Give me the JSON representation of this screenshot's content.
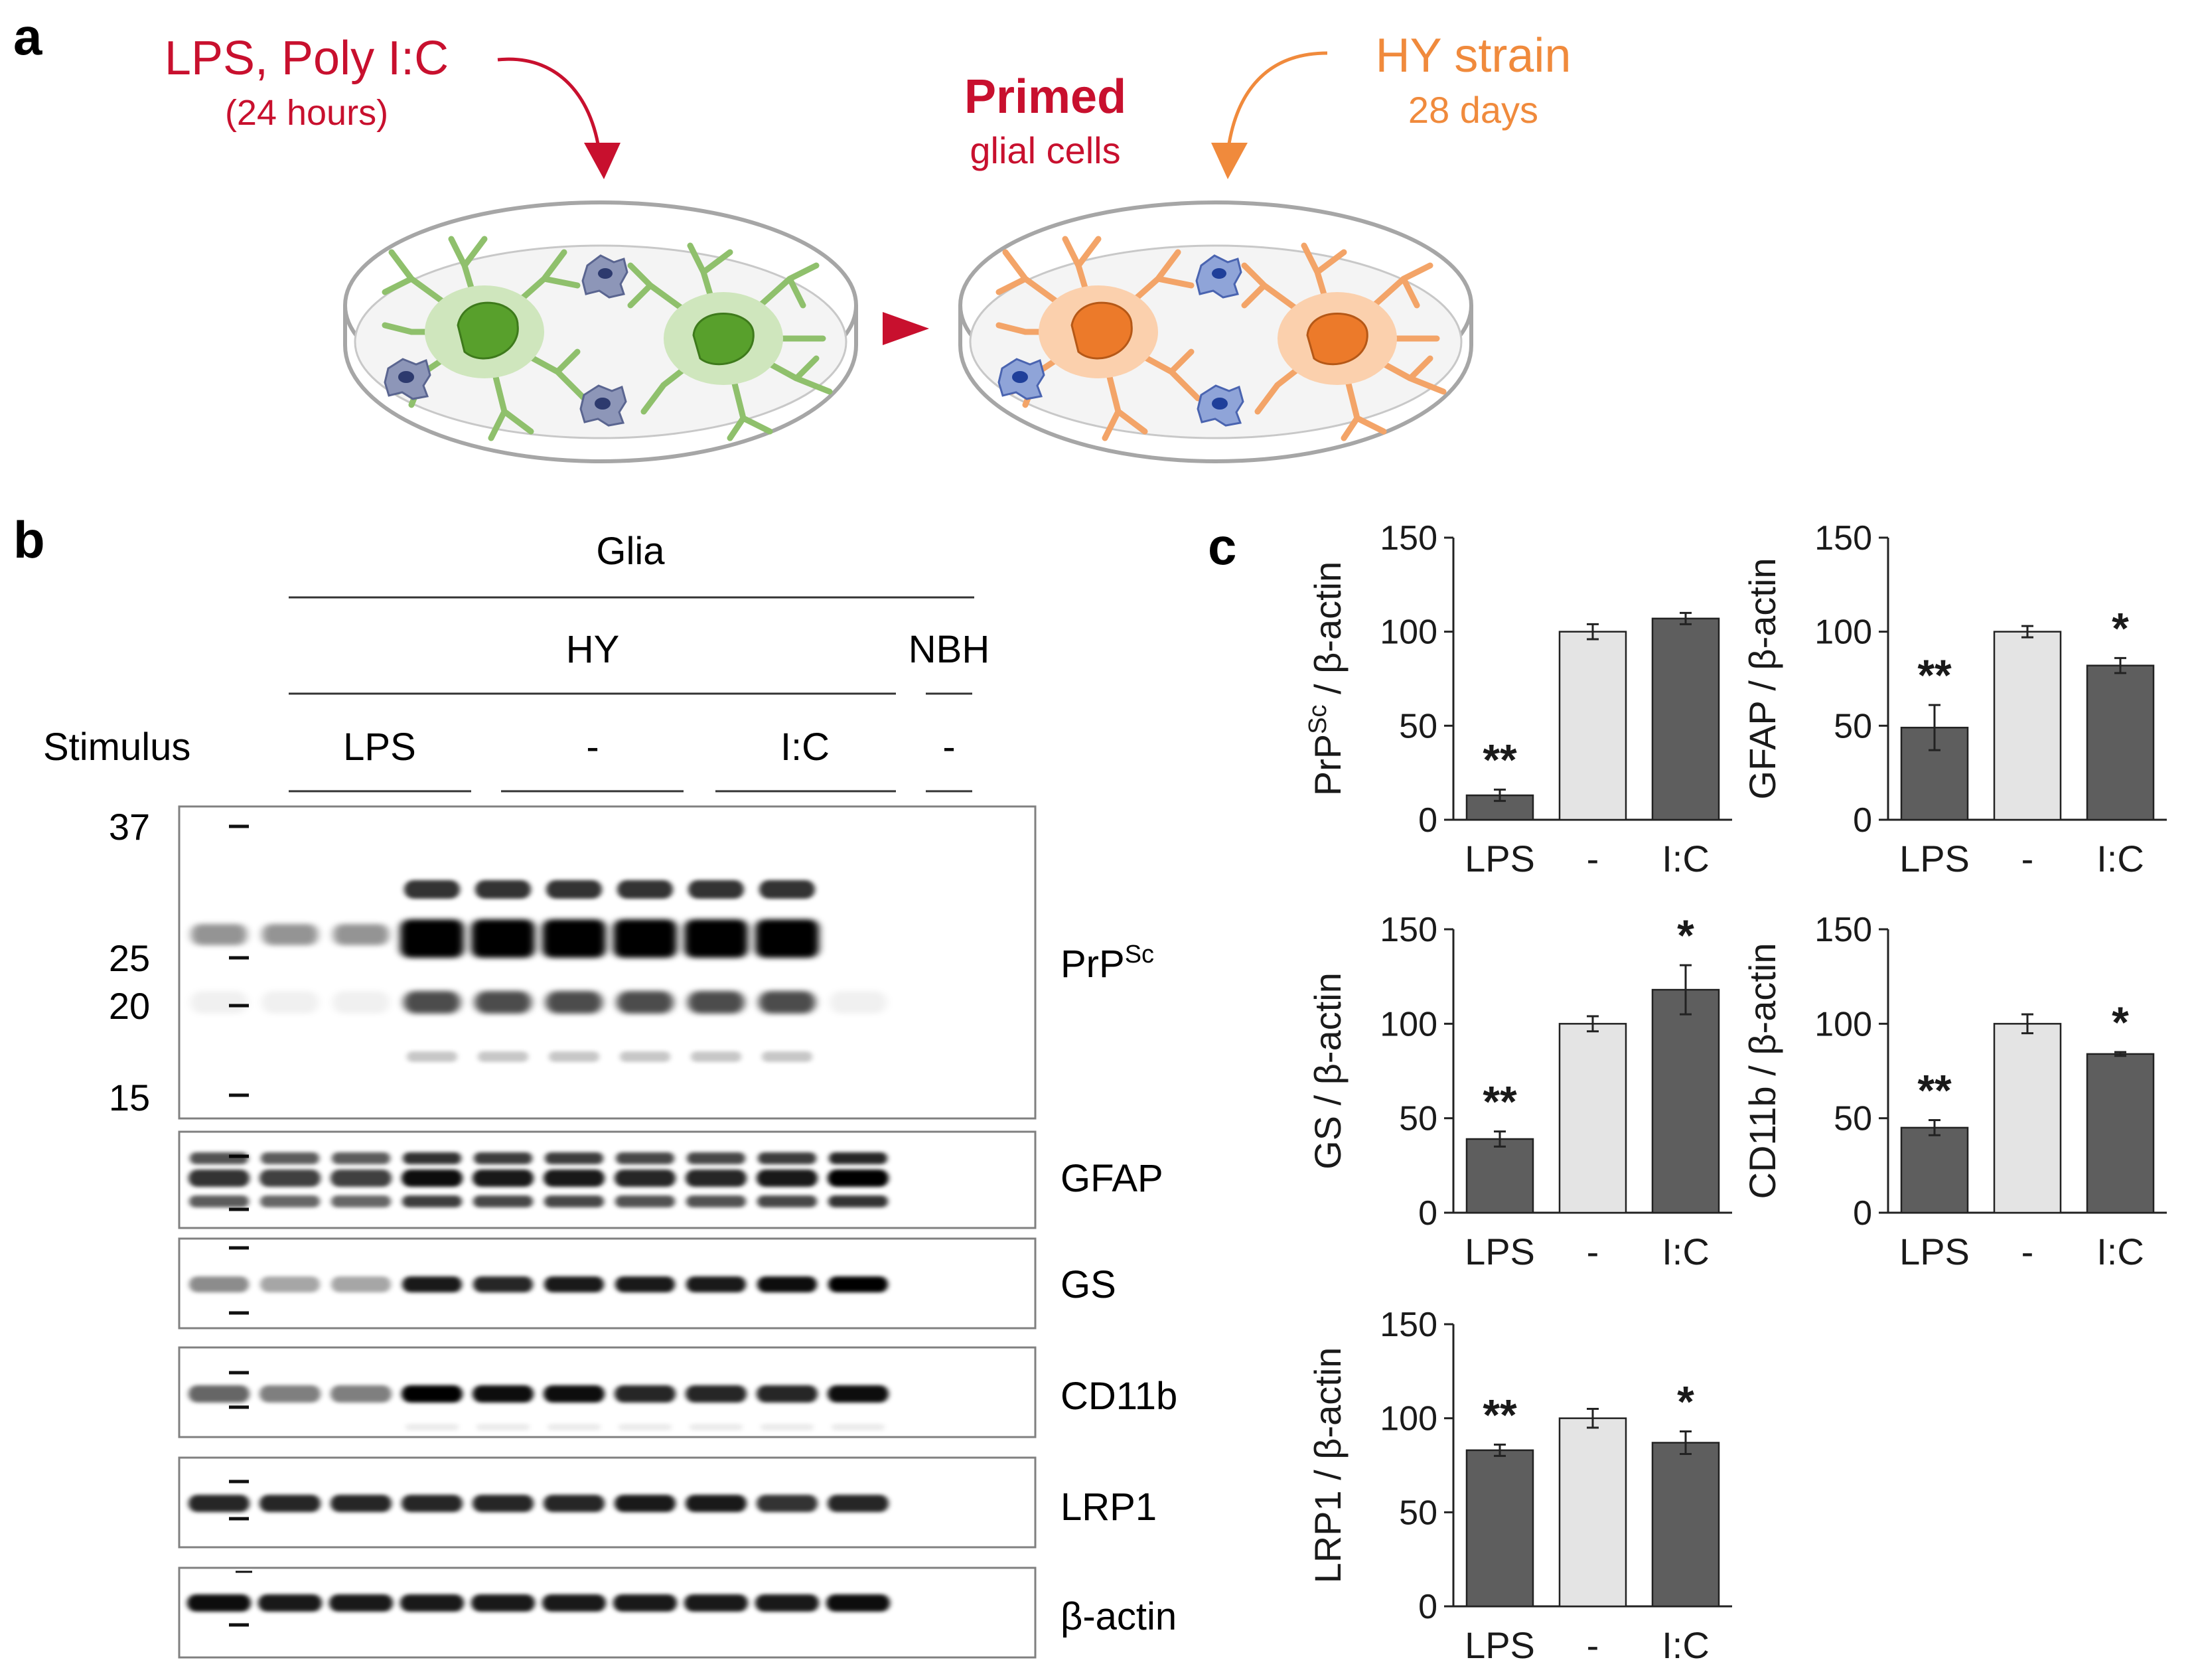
{
  "panel_a": {
    "label": "a",
    "stimulus_title": "LPS, Poly I:C",
    "stimulus_duration": "(24 hours)",
    "primed_title": "Primed",
    "primed_subtitle": "glial cells",
    "infection_title": "HY strain",
    "infection_duration": "28 days",
    "colors": {
      "stimulus": "#c8102e",
      "infection": "#f08a3c",
      "cell_green": "#9ccc7c",
      "cell_orange": "#f6a56b"
    }
  },
  "panel_b": {
    "label": "b",
    "header_glia": "Glia",
    "header_hy": "HY",
    "header_nbh": "NBH",
    "stimulus_label": "Stimulus",
    "groups": [
      "LPS",
      "-",
      "I:C",
      "-"
    ],
    "marker_labels": [
      "37",
      "25",
      "20",
      "15"
    ],
    "blots": [
      "PrP",
      "GFAP",
      "GS",
      "CD11b",
      "LRP1",
      "β-actin"
    ],
    "prp_superscript": "Sc"
  },
  "panel_c": {
    "label": "c"
  },
  "chart_data": [
    {
      "type": "bar",
      "id": "prpsc",
      "ylabel_main": "PrP",
      "ylabel_sup": "Sc",
      "ylabel_rest": " / β-actin",
      "categories": [
        "LPS",
        "-",
        "I:C"
      ],
      "values": [
        13,
        100,
        107
      ],
      "errors": [
        3,
        4,
        3
      ],
      "significance": [
        "**",
        "",
        ""
      ],
      "ylim": [
        0,
        150
      ],
      "yticks": [
        "0",
        "50",
        "100",
        "150"
      ]
    },
    {
      "type": "bar",
      "id": "gfap",
      "ylabel_main": "GFAP / β-actin",
      "ylabel_sup": "",
      "ylabel_rest": "",
      "categories": [
        "LPS",
        "-",
        "I:C"
      ],
      "values": [
        49,
        100,
        82
      ],
      "errors": [
        12,
        3,
        4
      ],
      "significance": [
        "**",
        "",
        "*"
      ],
      "ylim": [
        0,
        150
      ],
      "yticks": [
        "0",
        "50",
        "100",
        "150"
      ]
    },
    {
      "type": "bar",
      "id": "gs",
      "ylabel_main": "GS / β-actin",
      "ylabel_sup": "",
      "ylabel_rest": "",
      "categories": [
        "LPS",
        "-",
        "I:C"
      ],
      "values": [
        39,
        100,
        118
      ],
      "errors": [
        4,
        4,
        13
      ],
      "significance": [
        "**",
        "",
        "*"
      ],
      "ylim": [
        0,
        150
      ],
      "yticks": [
        "0",
        "50",
        "100",
        "150"
      ]
    },
    {
      "type": "bar",
      "id": "cd11b",
      "ylabel_main": "CD11b / β-actin",
      "ylabel_sup": "",
      "ylabel_rest": "",
      "categories": [
        "LPS",
        "-",
        "I:C"
      ],
      "values": [
        45,
        100,
        84
      ],
      "errors": [
        4,
        5,
        1
      ],
      "significance": [
        "**",
        "",
        "*"
      ],
      "ylim": [
        0,
        150
      ],
      "yticks": [
        "0",
        "50",
        "100",
        "150"
      ]
    },
    {
      "type": "bar",
      "id": "lrp1",
      "ylabel_main": "LRP1 / β-actin",
      "ylabel_sup": "",
      "ylabel_rest": "",
      "categories": [
        "LPS",
        "-",
        "I:C"
      ],
      "values": [
        83,
        100,
        87
      ],
      "errors": [
        3,
        5,
        6
      ],
      "significance": [
        "**",
        "",
        "*"
      ],
      "ylim": [
        0,
        150
      ],
      "yticks": [
        "0",
        "50",
        "100",
        "150"
      ]
    }
  ],
  "blot_data": {
    "lanes": 10,
    "prpsc_intensity": [
      0.35,
      0.32,
      0.3,
      1,
      1,
      1,
      1,
      1,
      1,
      0
    ],
    "gfap_intensity": [
      0.8,
      0.75,
      0.75,
      0.95,
      0.9,
      0.9,
      0.85,
      0.85,
      0.9,
      1
    ],
    "gs_intensity": [
      0.45,
      0.35,
      0.35,
      0.9,
      0.85,
      0.9,
      0.9,
      0.9,
      0.95,
      1
    ],
    "cd11b_intensity": [
      0.6,
      0.5,
      0.5,
      1,
      0.95,
      0.95,
      0.85,
      0.85,
      0.85,
      0.95
    ],
    "lrp1_intensity": [
      0.85,
      0.85,
      0.85,
      0.85,
      0.85,
      0.85,
      0.9,
      0.9,
      0.8,
      0.85
    ],
    "actin_intensity": [
      0.95,
      0.9,
      0.9,
      0.9,
      0.9,
      0.9,
      0.9,
      0.9,
      0.9,
      0.95
    ]
  }
}
